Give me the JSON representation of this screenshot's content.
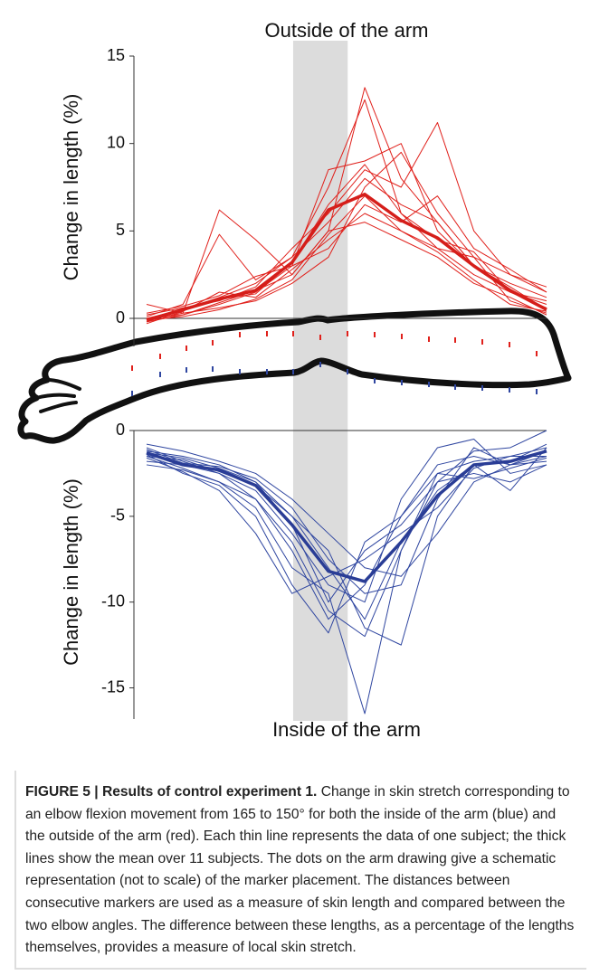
{
  "chart_data": [
    {
      "type": "line",
      "title": "Outside of the arm",
      "ylabel": "Change in length (%)",
      "x": [
        1,
        2,
        3,
        4,
        5,
        6,
        7,
        8,
        9,
        10,
        11,
        12
      ],
      "xlim": [
        1,
        12
      ],
      "ylim": [
        0,
        15
      ],
      "yticks": [
        0,
        5,
        10,
        15
      ],
      "span": [
        5.03,
        6.53
      ],
      "span_color": "#dcdcdc",
      "series": [
        {
          "color": "#e0201b",
          "linewidth": 1,
          "values": [
            0.8,
            0.3,
            6.2,
            4.5,
            2.5,
            5.0,
            13.2,
            8.0,
            5.5,
            3.0,
            1.5,
            0.8
          ]
        },
        {
          "color": "#e0201b",
          "linewidth": 1,
          "values": [
            0.0,
            0.5,
            1.2,
            2.0,
            3.5,
            7.5,
            12.5,
            6.0,
            4.0,
            2.5,
            1.5,
            1.0
          ]
        },
        {
          "color": "#e0201b",
          "linewidth": 1,
          "values": [
            -0.2,
            0.2,
            0.8,
            1.5,
            3.0,
            8.5,
            9.0,
            10.0,
            5.0,
            3.0,
            1.8,
            0.5
          ]
        },
        {
          "color": "#e0201b",
          "linewidth": 1,
          "values": [
            0.2,
            0.6,
            1.0,
            1.8,
            4.0,
            6.0,
            8.5,
            7.5,
            11.2,
            5.0,
            2.5,
            1.5
          ]
        },
        {
          "color": "#e0201b",
          "linewidth": 1,
          "values": [
            -0.3,
            0.4,
            1.5,
            1.2,
            2.8,
            4.5,
            6.0,
            5.0,
            4.0,
            3.5,
            1.0,
            0.3
          ]
        },
        {
          "color": "#e0201b",
          "linewidth": 1,
          "values": [
            0.1,
            0.8,
            4.8,
            2.2,
            3.5,
            5.5,
            8.0,
            6.5,
            5.5,
            3.0,
            2.0,
            1.2
          ]
        },
        {
          "color": "#e0201b",
          "linewidth": 1,
          "values": [
            -0.1,
            0.3,
            0.6,
            1.0,
            2.0,
            3.5,
            7.5,
            9.5,
            6.0,
            3.5,
            2.5,
            1.8
          ]
        },
        {
          "color": "#e0201b",
          "linewidth": 1,
          "values": [
            0.0,
            0.2,
            0.9,
            1.6,
            2.5,
            5.0,
            5.5,
            4.5,
            3.5,
            2.0,
            1.2,
            0.2
          ]
        },
        {
          "color": "#e0201b",
          "linewidth": 1,
          "values": [
            -0.2,
            0.5,
            1.1,
            1.4,
            3.2,
            6.5,
            8.8,
            6.0,
            4.5,
            3.8,
            1.5,
            0.6
          ]
        },
        {
          "color": "#e0201b",
          "linewidth": 1,
          "values": [
            0.3,
            0.7,
            1.3,
            2.4,
            3.0,
            4.0,
            6.5,
            5.5,
            7.0,
            4.0,
            2.8,
            1.5
          ]
        },
        {
          "color": "#e0201b",
          "linewidth": 1,
          "values": [
            -0.1,
            0.1,
            0.5,
            1.1,
            2.2,
            4.8,
            7.0,
            5.0,
            3.8,
            2.2,
            0.8,
            0.4
          ]
        },
        {
          "color": "#d51e1a",
          "linewidth": 3.5,
          "values": [
            -0.1,
            0.5,
            1.1,
            1.6,
            3.2,
            6.2,
            7.1,
            5.6,
            4.6,
            3.0,
            1.6,
            0.5
          ]
        }
      ]
    },
    {
      "type": "line",
      "title": "Inside of the arm",
      "ylabel": "Change in length (%)",
      "x": [
        1,
        2,
        3,
        4,
        5,
        6,
        7,
        8,
        9,
        10,
        11,
        12
      ],
      "xlim": [
        1,
        12
      ],
      "ylim": [
        -16.5,
        0
      ],
      "yticks": [
        0,
        -5,
        -10,
        -15
      ],
      "series": [
        {
          "color": "#2f46a0",
          "linewidth": 1,
          "values": [
            -1.0,
            -1.8,
            -2.5,
            -4.0,
            -7.0,
            -11.0,
            -9.0,
            -5.0,
            -2.0,
            -1.5,
            -2.0,
            -1.5
          ]
        },
        {
          "color": "#2f46a0",
          "linewidth": 1,
          "values": [
            -1.5,
            -2.2,
            -3.0,
            -4.5,
            -8.0,
            -9.5,
            -16.5,
            -7.0,
            -3.0,
            -1.2,
            -1.0,
            0.0
          ]
        },
        {
          "color": "#2f46a0",
          "linewidth": 1,
          "values": [
            -1.2,
            -1.5,
            -2.0,
            -3.0,
            -5.0,
            -7.0,
            -11.5,
            -12.5,
            -5.0,
            -2.0,
            -3.5,
            -1.0
          ]
        },
        {
          "color": "#2f46a0",
          "linewidth": 1,
          "values": [
            -1.4,
            -2.5,
            -3.2,
            -5.0,
            -9.0,
            -11.8,
            -6.5,
            -5.0,
            -2.5,
            -1.8,
            -1.5,
            -1.0
          ]
        },
        {
          "color": "#2f46a0",
          "linewidth": 1,
          "values": [
            -1.8,
            -2.0,
            -2.5,
            -3.5,
            -6.0,
            -9.0,
            -10.0,
            -4.0,
            -1.0,
            -0.5,
            -2.5,
            -2.0
          ]
        },
        {
          "color": "#2f46a0",
          "linewidth": 1,
          "values": [
            -0.8,
            -1.2,
            -1.8,
            -2.5,
            -4.0,
            -6.0,
            -8.0,
            -8.5,
            -6.0,
            -3.0,
            -2.0,
            -1.8
          ]
        },
        {
          "color": "#2f46a0",
          "linewidth": 1,
          "values": [
            -1.3,
            -1.6,
            -2.2,
            -3.0,
            -5.5,
            -10.0,
            -7.0,
            -5.5,
            -3.0,
            -2.5,
            -3.0,
            -2.0
          ]
        },
        {
          "color": "#2f46a0",
          "linewidth": 1,
          "values": [
            -1.6,
            -2.4,
            -3.5,
            -6.0,
            -9.5,
            -8.5,
            -7.5,
            -6.0,
            -4.5,
            -2.2,
            -1.5,
            -1.5
          ]
        },
        {
          "color": "#2f46a0",
          "linewidth": 1,
          "values": [
            -1.1,
            -1.9,
            -2.1,
            -2.8,
            -4.5,
            -7.5,
            -9.5,
            -9.0,
            -4.0,
            -1.0,
            -2.0,
            -1.2
          ]
        },
        {
          "color": "#2f46a0",
          "linewidth": 1,
          "values": [
            -2.0,
            -2.3,
            -3.0,
            -4.0,
            -6.5,
            -10.5,
            -12.0,
            -7.0,
            -2.5,
            -2.8,
            -2.2,
            -1.6
          ]
        },
        {
          "color": "#2f46a0",
          "linewidth": 1,
          "values": [
            -1.5,
            -1.7,
            -2.4,
            -3.2,
            -5.0,
            -8.0,
            -11.0,
            -6.5,
            -3.5,
            -2.0,
            -1.8,
            -0.8
          ]
        },
        {
          "color": "#2a3d96",
          "linewidth": 3.5,
          "values": [
            -1.3,
            -2.0,
            -2.3,
            -3.2,
            -5.5,
            -8.2,
            -8.8,
            -6.5,
            -3.8,
            -2.0,
            -1.8,
            -1.2
          ]
        }
      ]
    }
  ],
  "caption": {
    "label": "FIGURE 5 | Results of control experiment 1.",
    "text": "Change in skin stretch corresponding to an elbow flexion movement from 165 to 150° for both the inside of the arm (blue) and the outside of the arm (red). Each thin line represents the data of one subject; the thick lines show the mean over 11 subjects. The dots on the arm drawing give a schematic representation (not to scale) of the marker placement. The distances between consecutive markers are used as a measure of skin length and compared between the two elbow angles. The difference between these lengths, as a percentage of the lengths themselves, provides a measure of local skin stretch."
  }
}
